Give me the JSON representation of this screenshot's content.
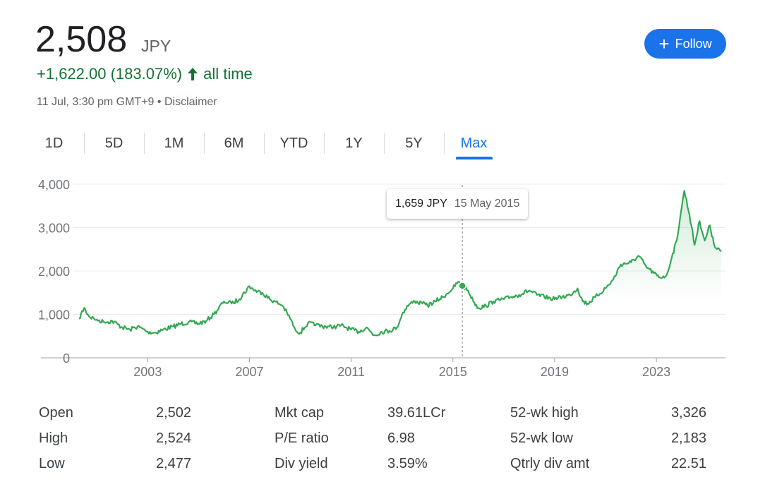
{
  "price": "2,508",
  "currency": "JPY",
  "change": {
    "text": "+1,622.00 (183.07%)",
    "period": "all time",
    "color": "#137333"
  },
  "meta": {
    "timestamp": "11 Jul, 3:30 pm GMT+9",
    "separator": " • ",
    "disclaimer": "Disclaimer"
  },
  "follow": {
    "label": "Follow",
    "icon": "plus-icon",
    "color": "#1a73e8"
  },
  "tabs": [
    {
      "label": "1D",
      "active": false
    },
    {
      "label": "5D",
      "active": false
    },
    {
      "label": "1M",
      "active": false
    },
    {
      "label": "6M",
      "active": false
    },
    {
      "label": "YTD",
      "active": false
    },
    {
      "label": "1Y",
      "active": false
    },
    {
      "label": "5Y",
      "active": false
    },
    {
      "label": "Max",
      "active": true
    }
  ],
  "tooltip": {
    "price": "1,659 JPY",
    "date": "15 May 2015"
  },
  "chart_data": {
    "type": "line",
    "title": "",
    "xlabel": "",
    "ylabel": "",
    "line_color": "#34a853",
    "y_ticks": [
      "0",
      "1,000",
      "2,000",
      "3,000",
      "4,000"
    ],
    "y_tick_values": [
      0,
      1000,
      2000,
      3000,
      4000
    ],
    "ylim": [
      0,
      4000
    ],
    "x_ticks": [
      "2003",
      "2007",
      "2011",
      "2015",
      "2019",
      "2023"
    ],
    "x_tick_values": [
      2003,
      2007,
      2011,
      2015,
      2019,
      2023
    ],
    "xlim": [
      2000.3,
      2025.55
    ],
    "grid": true,
    "hover_x": 2015.37,
    "series": [
      {
        "x": [
          2000.3,
          2000.5,
          2000.7,
          2001.0,
          2001.3,
          2001.6,
          2002.0,
          2002.3,
          2002.6,
          2003.0,
          2003.3,
          2003.6,
          2004.0,
          2004.3,
          2004.6,
          2005.0,
          2005.3,
          2005.6,
          2006.0,
          2006.3,
          2006.6,
          2007.0,
          2007.2,
          2007.5,
          2007.8,
          2008.0,
          2008.3,
          2008.6,
          2008.8,
          2009.0,
          2009.3,
          2009.6,
          2010.0,
          2010.3,
          2010.6,
          2011.0,
          2011.3,
          2011.6,
          2011.9,
          2012.2,
          2012.5,
          2012.8,
          2013.0,
          2013.2,
          2013.5,
          2013.8,
          2014.0,
          2014.3,
          2014.6,
          2015.0,
          2015.2,
          2015.37,
          2015.6,
          2015.8,
          2016.0,
          2016.3,
          2016.6,
          2017.0,
          2017.3,
          2017.6,
          2018.0,
          2018.3,
          2018.6,
          2019.0,
          2019.3,
          2019.6,
          2019.9,
          2020.1,
          2020.3,
          2020.6,
          2021.0,
          2021.3,
          2021.6,
          2022.0,
          2022.3,
          2022.6,
          2022.9,
          2023.1,
          2023.4,
          2023.6,
          2023.8,
          2023.95,
          2024.1,
          2024.3,
          2024.5,
          2024.7,
          2024.9,
          2025.1,
          2025.3,
          2025.55
        ],
        "y": [
          900,
          1150,
          950,
          880,
          820,
          850,
          700,
          650,
          720,
          600,
          580,
          650,
          720,
          780,
          820,
          790,
          850,
          1000,
          1300,
          1250,
          1350,
          1650,
          1550,
          1500,
          1350,
          1300,
          1200,
          900,
          650,
          580,
          800,
          750,
          720,
          700,
          750,
          650,
          600,
          700,
          520,
          600,
          620,
          700,
          1000,
          1200,
          1300,
          1250,
          1200,
          1300,
          1400,
          1600,
          1750,
          1659,
          1550,
          1300,
          1150,
          1200,
          1300,
          1350,
          1400,
          1450,
          1550,
          1450,
          1400,
          1350,
          1400,
          1450,
          1600,
          1300,
          1250,
          1400,
          1600,
          1800,
          2150,
          2200,
          2350,
          2100,
          1950,
          1850,
          1900,
          2300,
          2700,
          3300,
          3850,
          3300,
          2600,
          3150,
          2700,
          3050,
          2550,
          2450
        ]
      }
    ]
  },
  "stats": [
    {
      "label": "Open",
      "value": "2,502"
    },
    {
      "label": "High",
      "value": "2,524"
    },
    {
      "label": "Low",
      "value": "2,477"
    },
    {
      "label": "Mkt cap",
      "value": "39.61LCr"
    },
    {
      "label": "P/E ratio",
      "value": "6.98"
    },
    {
      "label": "Div yield",
      "value": "3.59%"
    },
    {
      "label": "52-wk high",
      "value": "3,326"
    },
    {
      "label": "52-wk low",
      "value": "2,183"
    },
    {
      "label": "Qtrly div amt",
      "value": "22.51"
    }
  ]
}
